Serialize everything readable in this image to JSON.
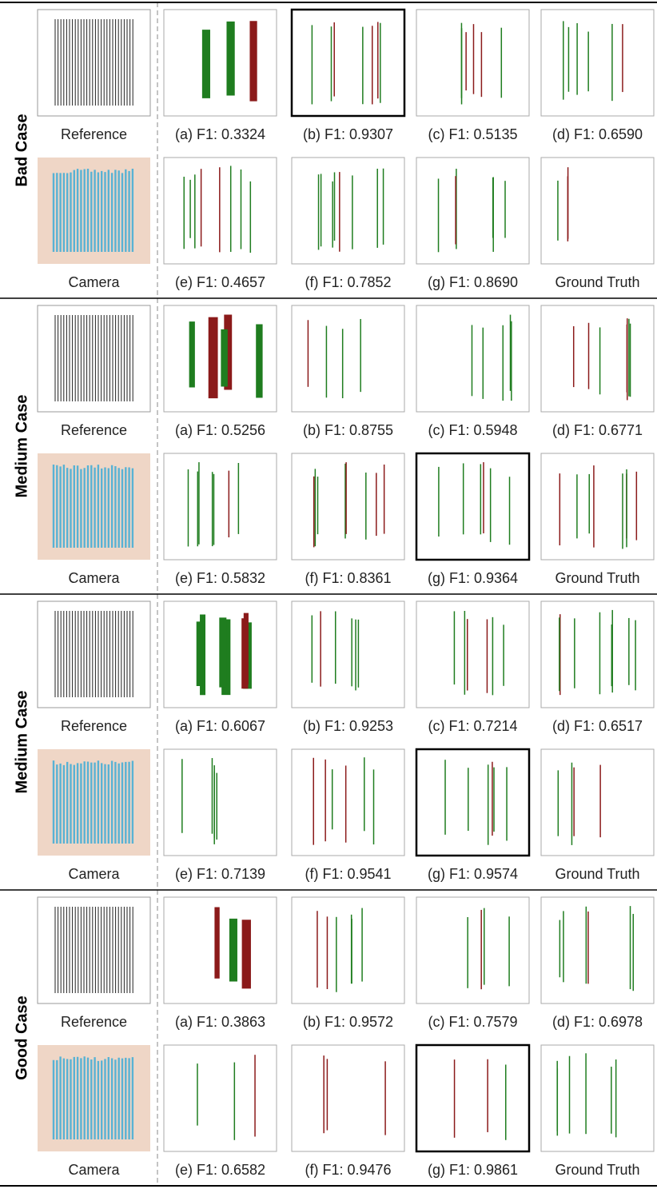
{
  "sections": [
    {
      "label": "Bad Case",
      "highlight": {
        "row": 0,
        "panel": 1
      },
      "rows": [
        {
          "source": "Reference",
          "panels": [
            "(a) F1: 0.3324",
            "(b) F1: 0.9307",
            "(c) F1: 0.5135",
            "(d) F1: 0.6590"
          ]
        },
        {
          "source": "Camera",
          "panels": [
            "(e) F1: 0.4657",
            "(f) F1: 0.7852",
            "(g) F1: 0.8690",
            "Ground Truth"
          ]
        }
      ]
    },
    {
      "label": "Medium Case",
      "highlight": {
        "row": 1,
        "panel": 2
      },
      "rows": [
        {
          "source": "Reference",
          "panels": [
            "(a) F1: 0.5256",
            "(b)  F1: 0.8755",
            "(c) F1: 0.5948",
            "(d) F1: 0.6771"
          ]
        },
        {
          "source": "Camera",
          "panels": [
            "(e) F1: 0.5832",
            "(f) F1: 0.8361",
            "(g) F1: 0.9364",
            "Ground Truth"
          ]
        }
      ]
    },
    {
      "label": "Medium Case",
      "highlight": {
        "row": 1,
        "panel": 2
      },
      "rows": [
        {
          "source": "Reference",
          "panels": [
            "(a) F1: 0.6067",
            "(b) F1: 0.9253",
            "(c) F1: 0.7214",
            "(d) F1: 0.6517"
          ]
        },
        {
          "source": "Camera",
          "panels": [
            "(e) F1: 0.7139",
            "(f) F1: 0.9541",
            "(g) F1: 0.9574",
            "Ground Truth"
          ]
        }
      ]
    },
    {
      "label": "Good Case",
      "highlight": {
        "row": 1,
        "panel": 2
      },
      "rows": [
        {
          "source": "Reference",
          "panels": [
            "(a) F1: 0.3863",
            "(b) F1: 0.9572",
            "(c) F1: 0.7579",
            "(d) F1: 0.6978"
          ]
        },
        {
          "source": "Camera",
          "panels": [
            "(e) F1: 0.6582",
            "(f) F1: 0.9476",
            "(g) F1: 0.9861",
            "Ground Truth"
          ]
        }
      ]
    }
  ]
}
